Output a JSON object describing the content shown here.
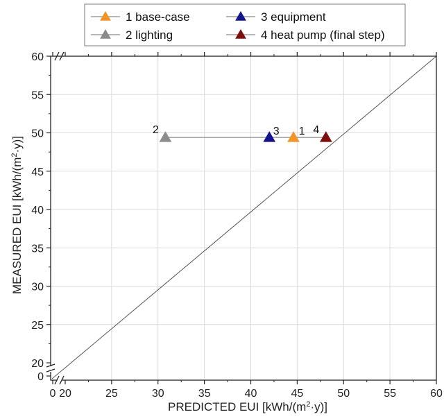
{
  "chart_data": {
    "type": "scatter",
    "xlabel": "PREDICTED EUI [kWh/(m",
    "xlabel_sup": "2",
    "xlabel_end": "·y)]",
    "ylabel": "MEASURED EUI [kWh/(m",
    "ylabel_sup": "2",
    "ylabel_end": "·y)]",
    "xlim": [
      0,
      60
    ],
    "ylim": [
      0,
      60
    ],
    "axis_break": "after 0 on both axes (0 then 20 to 60)",
    "x_ticks": [
      "0",
      "20",
      "25",
      "30",
      "35",
      "40",
      "45",
      "50",
      "55",
      "60"
    ],
    "y_ticks": [
      "0",
      "20",
      "25",
      "30",
      "35",
      "40",
      "45",
      "50",
      "55",
      "60"
    ],
    "grid": true,
    "legend_placement": "top",
    "reference_line": "y = x",
    "series": [
      {
        "name": "1 base-case",
        "color": "#f39426",
        "label": "1",
        "x": 44.6,
        "y": 49.4
      },
      {
        "name": "2 lighting",
        "color": "#8c8c8c",
        "label": "2",
        "x": 30.8,
        "y": 49.4
      },
      {
        "name": "3 equipment",
        "color": "#14148c",
        "label": "3",
        "x": 42.0,
        "y": 49.4
      },
      {
        "name": "4 heat pump (final step)",
        "color": "#7e0e0e",
        "label": "4",
        "x": 48.1,
        "y": 49.4
      }
    ],
    "connecting_line": {
      "x": [
        30.8,
        48.1
      ],
      "y": 49.4,
      "color": "#8c8c8c"
    }
  }
}
